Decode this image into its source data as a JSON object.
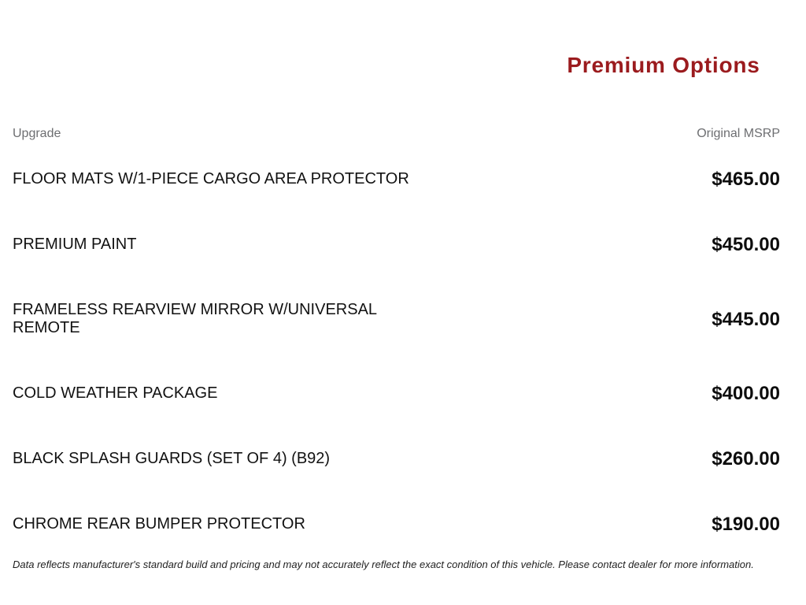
{
  "header": {
    "title": "Premium Options",
    "accent_color": "#9B1B1E"
  },
  "table": {
    "columns": {
      "upgrade": "Upgrade",
      "msrp": "Original MSRP"
    },
    "rows": [
      {
        "label": "FLOOR MATS W/1-PIECE CARGO AREA PROTECTOR",
        "price": "$465.00"
      },
      {
        "label": "PREMIUM PAINT",
        "price": "$450.00"
      },
      {
        "label": "FRAMELESS REARVIEW MIRROR W/UNIVERSAL REMOTE",
        "price": "$445.00"
      },
      {
        "label": "COLD WEATHER PACKAGE",
        "price": "$400.00"
      },
      {
        "label": "BLACK SPLASH GUARDS (SET OF 4) (B92)",
        "price": "$260.00"
      },
      {
        "label": "CHROME REAR BUMPER PROTECTOR",
        "price": "$190.00"
      }
    ]
  },
  "footer": {
    "disclaimer": "Data reflects manufacturer's standard build and pricing and may not accurately reflect the exact condition of this vehicle. Please contact dealer for more information."
  }
}
